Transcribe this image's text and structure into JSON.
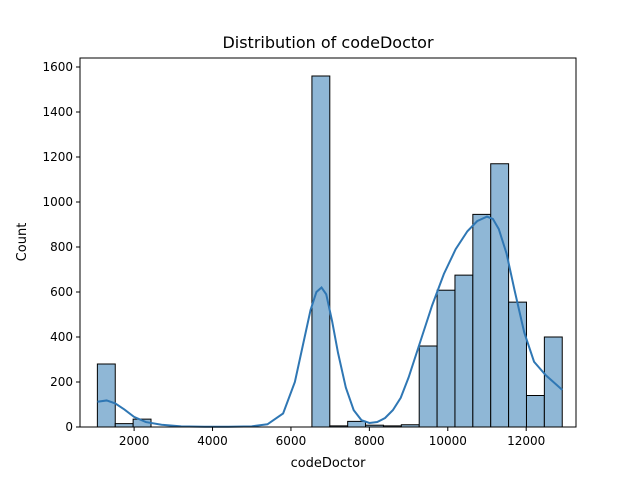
{
  "chart_data": {
    "type": "bar",
    "title": "Distribution of codeDoctor",
    "xlabel": "codeDoctor",
    "ylabel": "Count",
    "xlim": [
      620,
      13270
    ],
    "ylim": [
      0,
      1640
    ],
    "xticks": [
      2000,
      4000,
      6000,
      8000,
      10000,
      12000
    ],
    "yticks": [
      0,
      200,
      400,
      600,
      800,
      1000,
      1200,
      1400,
      1600
    ],
    "bin_edges": [
      1063,
      1519,
      1975,
      2431,
      2887,
      3343,
      3799,
      4255,
      4711,
      5167,
      5623,
      6079,
      6535,
      6991,
      7447,
      7903,
      8359,
      8815,
      9271,
      9727,
      10183,
      10639,
      11095,
      11551,
      12007,
      12463,
      12919
    ],
    "counts": [
      280,
      15,
      35,
      0,
      0,
      0,
      0,
      0,
      0,
      0,
      0,
      0,
      1560,
      5,
      25,
      8,
      5,
      10,
      360,
      608,
      675,
      945,
      1170,
      555,
      140,
      400
    ],
    "kde": {
      "x": [
        1063,
        1300,
        1519,
        1750,
        2000,
        2300,
        2700,
        3200,
        3800,
        4400,
        5000,
        5400,
        5800,
        6100,
        6300,
        6500,
        6650,
        6780,
        6900,
        7050,
        7200,
        7400,
        7600,
        7800,
        8000,
        8200,
        8400,
        8600,
        8800,
        9000,
        9300,
        9600,
        9900,
        10200,
        10500,
        10750,
        11000,
        11150,
        11300,
        11500,
        11700,
        11950,
        12200,
        12500,
        12919
      ],
      "y": [
        112,
        118,
        105,
        78,
        45,
        22,
        10,
        3,
        1,
        1,
        3,
        12,
        60,
        200,
        360,
        520,
        600,
        620,
        590,
        470,
        330,
        175,
        75,
        30,
        18,
        22,
        40,
        75,
        130,
        220,
        380,
        540,
        680,
        790,
        870,
        915,
        935,
        925,
        880,
        770,
        610,
        420,
        290,
        230,
        165
      ]
    },
    "grid": false,
    "colors": {
      "bar_fill": "#8fb7d6",
      "bar_edge": "#000000",
      "kde_line": "#2f77b4"
    }
  }
}
